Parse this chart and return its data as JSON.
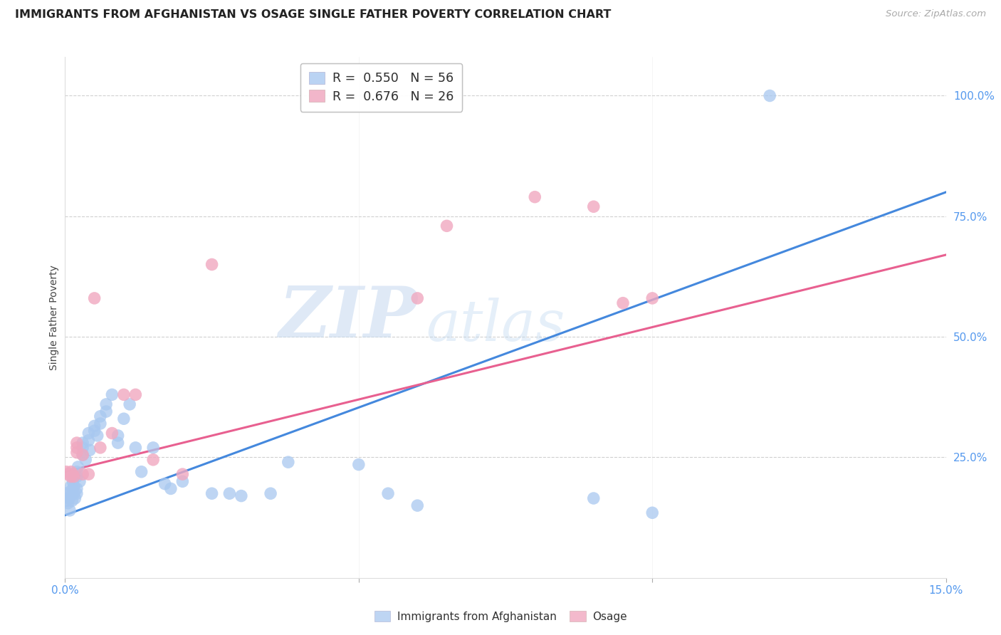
{
  "title": "IMMIGRANTS FROM AFGHANISTAN VS OSAGE SINGLE FATHER POVERTY CORRELATION CHART",
  "source": "Source: ZipAtlas.com",
  "ylabel": "Single Father Poverty",
  "xlim": [
    0.0,
    0.15
  ],
  "ylim": [
    0.0,
    1.08
  ],
  "ytick_labels_right": [
    "100.0%",
    "75.0%",
    "50.0%",
    "25.0%"
  ],
  "ytick_positions_right": [
    1.0,
    0.75,
    0.5,
    0.25
  ],
  "blue_R": 0.55,
  "blue_N": 56,
  "pink_R": 0.676,
  "pink_N": 26,
  "blue_color": "#a8c8f0",
  "pink_color": "#f0a8c0",
  "blue_line_color": "#4488dd",
  "pink_line_color": "#e86090",
  "axis_label_color": "#5599ee",
  "background_color": "#ffffff",
  "grid_color": "#d0d0d0",
  "blue_scatter_x": [
    0.0002,
    0.0003,
    0.0005,
    0.0007,
    0.0008,
    0.001,
    0.001,
    0.001,
    0.0012,
    0.0013,
    0.0015,
    0.0015,
    0.0015,
    0.0017,
    0.002,
    0.002,
    0.002,
    0.002,
    0.0022,
    0.0025,
    0.003,
    0.003,
    0.003,
    0.0035,
    0.004,
    0.004,
    0.0042,
    0.005,
    0.005,
    0.0055,
    0.006,
    0.006,
    0.007,
    0.007,
    0.008,
    0.009,
    0.009,
    0.01,
    0.011,
    0.012,
    0.013,
    0.015,
    0.017,
    0.018,
    0.02,
    0.025,
    0.028,
    0.03,
    0.035,
    0.038,
    0.05,
    0.055,
    0.06,
    0.09,
    0.1,
    0.12
  ],
  "blue_scatter_y": [
    0.175,
    0.16,
    0.155,
    0.165,
    0.14,
    0.17,
    0.18,
    0.19,
    0.16,
    0.2,
    0.21,
    0.19,
    0.175,
    0.165,
    0.21,
    0.185,
    0.175,
    0.22,
    0.23,
    0.2,
    0.28,
    0.27,
    0.255,
    0.245,
    0.3,
    0.285,
    0.265,
    0.315,
    0.305,
    0.295,
    0.335,
    0.32,
    0.36,
    0.345,
    0.38,
    0.295,
    0.28,
    0.33,
    0.36,
    0.27,
    0.22,
    0.27,
    0.195,
    0.185,
    0.2,
    0.175,
    0.175,
    0.17,
    0.175,
    0.24,
    0.235,
    0.175,
    0.15,
    0.165,
    0.135,
    1.0
  ],
  "pink_scatter_x": [
    0.0002,
    0.0005,
    0.001,
    0.001,
    0.0013,
    0.0015,
    0.002,
    0.002,
    0.002,
    0.003,
    0.003,
    0.004,
    0.005,
    0.006,
    0.008,
    0.01,
    0.012,
    0.015,
    0.02,
    0.025,
    0.06,
    0.065,
    0.08,
    0.09,
    0.095,
    0.1
  ],
  "pink_scatter_y": [
    0.22,
    0.215,
    0.21,
    0.22,
    0.215,
    0.21,
    0.26,
    0.27,
    0.28,
    0.215,
    0.255,
    0.215,
    0.58,
    0.27,
    0.3,
    0.38,
    0.38,
    0.245,
    0.215,
    0.65,
    0.58,
    0.73,
    0.79,
    0.77,
    0.57,
    0.58
  ],
  "blue_trendline_x": [
    0.0,
    0.15
  ],
  "blue_trendline_y": [
    0.13,
    0.8
  ],
  "pink_trendline_x": [
    0.0,
    0.15
  ],
  "pink_trendline_y": [
    0.22,
    0.67
  ]
}
